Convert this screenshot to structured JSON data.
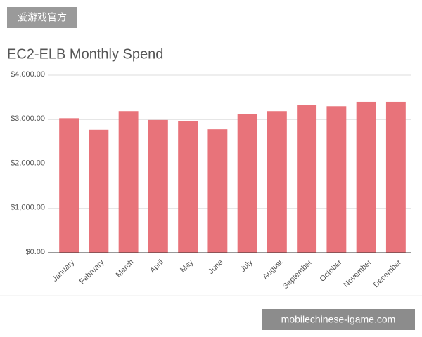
{
  "chart_data": {
    "type": "bar",
    "title": "EC2-ELB Monthly Spend",
    "categories": [
      "January",
      "February",
      "March",
      "April",
      "May",
      "June",
      "July",
      "August",
      "September",
      "October",
      "November",
      "December"
    ],
    "values": [
      3030,
      2770,
      3190,
      2990,
      2960,
      2780,
      3130,
      3190,
      3320,
      3300,
      3400,
      3400
    ],
    "color": "#e8737a",
    "ylim": [
      0,
      4000
    ],
    "yticks": [
      {
        "value": 0,
        "label": "$0.00"
      },
      {
        "value": 1000,
        "label": "$1,000.00"
      },
      {
        "value": 2000,
        "label": "$2,000.00"
      },
      {
        "value": 3000,
        "label": "$3,000.00"
      },
      {
        "value": 4000,
        "label": "$4,000.00"
      }
    ],
    "grid": true
  },
  "watermarks": [
    "爱游戏官方",
    "mobilechinese-igame.com"
  ]
}
